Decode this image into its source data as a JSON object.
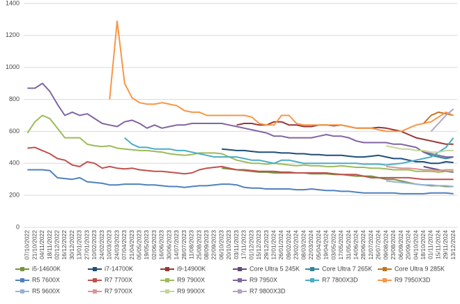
{
  "chart_data": {
    "type": "line",
    "categories": [
      "07/10/2022",
      "21/10/2022",
      "04/11/2022",
      "18/11/2022",
      "02/12/2022",
      "16/12/2022",
      "30/12/2022",
      "13/01/2023",
      "27/01/2023",
      "10/02/2023",
      "24/02/2023",
      "10/03/2023",
      "24/03/2023",
      "07/04/2023",
      "21/04/2023",
      "05/05/2023",
      "19/05/2023",
      "02/06/2023",
      "16/06/2023",
      "30/06/2023",
      "14/07/2023",
      "28/07/2023",
      "11/08/2023",
      "25/08/2023",
      "08/09/2023",
      "22/09/2023",
      "06/10/2023",
      "20/10/2023",
      "03/11/2023",
      "17/11/2023",
      "01/12/2023",
      "15/12/2023",
      "29/12/2023",
      "12/01/2024",
      "26/01/2024",
      "09/02/2024",
      "23/02/2024",
      "08/03/2024",
      "22/03/2024",
      "05/04/2024",
      "19/04/2024",
      "03/05/2024",
      "17/05/2024",
      "31/05/2024",
      "14/06/2024",
      "28/06/2024",
      "12/07/2024",
      "26/07/2024",
      "09/08/2024",
      "23/08/2024",
      "06/09/2024",
      "20/09/2024",
      "04/10/2024",
      "18/10/2024",
      "01/11/2024",
      "15/11/2024",
      "29/11/2024",
      "13/12/2024"
    ],
    "ylim": [
      0,
      1400
    ],
    "yticks": [
      0,
      200,
      400,
      600,
      800,
      1000,
      1200,
      1400
    ],
    "grid": true,
    "series": [
      {
        "name": "i5-14600K",
        "color": "#77933c",
        "values": [
          null,
          null,
          null,
          null,
          null,
          null,
          null,
          null,
          null,
          null,
          null,
          null,
          null,
          null,
          null,
          null,
          null,
          null,
          null,
          null,
          null,
          null,
          null,
          null,
          null,
          null,
          370,
          365,
          360,
          355,
          350,
          345,
          345,
          340,
          340,
          340,
          340,
          340,
          335,
          335,
          335,
          330,
          330,
          325,
          320,
          320,
          320,
          310,
          300,
          300,
          290,
          280,
          270,
          265,
          260,
          260,
          255,
          255
        ]
      },
      {
        "name": "i7-14700K",
        "color": "#1f4e79",
        "values": [
          null,
          null,
          null,
          null,
          null,
          null,
          null,
          null,
          null,
          null,
          null,
          null,
          null,
          null,
          null,
          null,
          null,
          null,
          null,
          null,
          null,
          null,
          null,
          null,
          null,
          null,
          490,
          485,
          480,
          480,
          475,
          470,
          470,
          470,
          465,
          465,
          460,
          460,
          455,
          455,
          450,
          450,
          450,
          445,
          440,
          440,
          445,
          450,
          440,
          430,
          430,
          420,
          410,
          410,
          400,
          400,
          410,
          405
        ]
      },
      {
        "name": "i9-14900K",
        "color": "#953735",
        "values": [
          null,
          null,
          null,
          null,
          null,
          null,
          null,
          null,
          null,
          null,
          null,
          null,
          null,
          null,
          null,
          null,
          null,
          null,
          null,
          null,
          null,
          null,
          null,
          null,
          null,
          null,
          null,
          null,
          640,
          650,
          650,
          640,
          640,
          660,
          660,
          640,
          640,
          630,
          630,
          640,
          640,
          635,
          640,
          630,
          620,
          620,
          620,
          625,
          620,
          610,
          600,
          580,
          560,
          550,
          540,
          530,
          520,
          520
        ]
      },
      {
        "name": "Core Ultra 5 245K",
        "color": "#604a7b",
        "values": [
          null,
          null,
          null,
          null,
          null,
          null,
          null,
          null,
          null,
          null,
          null,
          null,
          null,
          null,
          null,
          null,
          null,
          null,
          null,
          null,
          null,
          null,
          null,
          null,
          null,
          null,
          null,
          null,
          null,
          null,
          null,
          null,
          null,
          null,
          null,
          null,
          null,
          null,
          null,
          null,
          null,
          null,
          null,
          null,
          null,
          null,
          null,
          null,
          null,
          null,
          null,
          null,
          null,
          380,
          370,
          360,
          350,
          345
        ]
      },
      {
        "name": "Core Ultra 7 265K",
        "color": "#31859c",
        "values": [
          null,
          null,
          null,
          null,
          null,
          null,
          null,
          null,
          null,
          null,
          null,
          null,
          null,
          null,
          null,
          null,
          null,
          null,
          null,
          null,
          null,
          null,
          null,
          null,
          null,
          null,
          null,
          null,
          null,
          null,
          null,
          null,
          null,
          null,
          null,
          null,
          null,
          null,
          null,
          null,
          null,
          null,
          null,
          null,
          null,
          null,
          null,
          null,
          null,
          null,
          null,
          null,
          null,
          470,
          450,
          440,
          430,
          440
        ]
      },
      {
        "name": "Core Ultra 9 285K",
        "color": "#c0741f",
        "values": [
          null,
          null,
          null,
          null,
          null,
          null,
          null,
          null,
          null,
          null,
          null,
          null,
          null,
          null,
          null,
          null,
          null,
          null,
          null,
          null,
          null,
          null,
          null,
          null,
          null,
          null,
          null,
          null,
          null,
          null,
          null,
          null,
          null,
          null,
          null,
          null,
          null,
          null,
          null,
          null,
          null,
          null,
          null,
          null,
          null,
          null,
          null,
          null,
          null,
          null,
          null,
          null,
          null,
          650,
          700,
          720,
          710,
          700
        ]
      },
      {
        "name": "R5 7600X",
        "color": "#4f81bd",
        "values": [
          360,
          360,
          360,
          355,
          310,
          305,
          300,
          310,
          285,
          280,
          275,
          265,
          265,
          270,
          270,
          270,
          265,
          265,
          260,
          255,
          255,
          250,
          255,
          260,
          260,
          265,
          270,
          270,
          265,
          250,
          245,
          245,
          240,
          240,
          240,
          240,
          235,
          235,
          240,
          235,
          230,
          230,
          225,
          225,
          220,
          215,
          215,
          215,
          215,
          215,
          210,
          210,
          210,
          210,
          215,
          215,
          215,
          210
        ]
      },
      {
        "name": "R7 7700X",
        "color": "#c0504d",
        "values": [
          495,
          500,
          480,
          460,
          430,
          420,
          390,
          380,
          410,
          400,
          370,
          380,
          370,
          365,
          370,
          360,
          355,
          350,
          350,
          345,
          340,
          335,
          340,
          360,
          370,
          375,
          380,
          370,
          360,
          360,
          355,
          350,
          350,
          350,
          345,
          345,
          340,
          340,
          340,
          340,
          340,
          335,
          330,
          330,
          330,
          320,
          310,
          310,
          310,
          310,
          310,
          310,
          305,
          300,
          300,
          300,
          300,
          300
        ]
      },
      {
        "name": "R9 7900X",
        "color": "#9bbb59",
        "values": [
          590,
          660,
          700,
          680,
          620,
          560,
          560,
          560,
          520,
          510,
          505,
          510,
          495,
          490,
          485,
          480,
          480,
          475,
          470,
          460,
          455,
          450,
          455,
          465,
          465,
          465,
          460,
          440,
          420,
          410,
          400,
          400,
          395,
          400,
          395,
          390,
          385,
          390,
          385,
          385,
          380,
          380,
          385,
          380,
          375,
          375,
          370,
          370,
          365,
          360,
          360,
          360,
          350,
          350,
          350,
          345,
          350,
          350
        ]
      },
      {
        "name": "R9 7950X",
        "color": "#8064a2",
        "values": [
          870,
          870,
          900,
          850,
          770,
          700,
          720,
          700,
          710,
          680,
          650,
          640,
          630,
          660,
          670,
          650,
          620,
          640,
          620,
          630,
          640,
          640,
          650,
          650,
          650,
          650,
          650,
          640,
          630,
          620,
          610,
          600,
          590,
          570,
          570,
          560,
          560,
          560,
          560,
          570,
          580,
          570,
          570,
          560,
          540,
          530,
          530,
          530,
          530,
          520,
          520,
          510,
          500,
          470,
          460,
          450,
          440,
          440
        ]
      },
      {
        "name": "R7 7800X3D",
        "color": "#4bacc6",
        "values": [
          null,
          null,
          null,
          null,
          null,
          null,
          null,
          null,
          null,
          null,
          null,
          null,
          null,
          560,
          520,
          500,
          500,
          490,
          490,
          490,
          480,
          480,
          470,
          460,
          450,
          440,
          440,
          440,
          440,
          430,
          420,
          420,
          410,
          400,
          420,
          420,
          410,
          400,
          400,
          400,
          400,
          400,
          400,
          400,
          400,
          395,
          395,
          395,
          390,
          395,
          400,
          410,
          420,
          430,
          440,
          470,
          500,
          560
        ]
      },
      {
        "name": "R9 7950X3D",
        "color": "#f79646",
        "values": [
          null,
          null,
          null,
          null,
          null,
          null,
          null,
          null,
          null,
          null,
          null,
          800,
          1290,
          900,
          810,
          780,
          770,
          770,
          780,
          770,
          760,
          730,
          720,
          720,
          700,
          700,
          700,
          700,
          700,
          700,
          690,
          650,
          640,
          640,
          700,
          700,
          650,
          640,
          640,
          640,
          640,
          640,
          640,
          630,
          620,
          620,
          620,
          610,
          600,
          600,
          600,
          620,
          640,
          650,
          660,
          690,
          720,
          700
        ]
      },
      {
        "name": "R5 9600X",
        "color": "#95b3d7",
        "values": [
          null,
          null,
          null,
          null,
          null,
          null,
          null,
          null,
          null,
          null,
          null,
          null,
          null,
          null,
          null,
          null,
          null,
          null,
          null,
          null,
          null,
          null,
          null,
          null,
          null,
          null,
          null,
          null,
          null,
          null,
          null,
          null,
          null,
          null,
          null,
          null,
          null,
          null,
          null,
          null,
          null,
          null,
          null,
          null,
          null,
          null,
          null,
          null,
          290,
          285,
          280,
          275,
          270,
          265,
          265,
          260,
          260,
          255
        ]
      },
      {
        "name": "R7 9700X",
        "color": "#d99694",
        "values": [
          null,
          null,
          null,
          null,
          null,
          null,
          null,
          null,
          null,
          null,
          null,
          null,
          null,
          null,
          null,
          null,
          null,
          null,
          null,
          null,
          null,
          null,
          null,
          null,
          null,
          null,
          null,
          null,
          null,
          null,
          null,
          null,
          null,
          null,
          null,
          null,
          null,
          null,
          null,
          null,
          null,
          null,
          null,
          null,
          null,
          null,
          null,
          null,
          380,
          375,
          370,
          370,
          365,
          360,
          360,
          355,
          360,
          360
        ]
      },
      {
        "name": "R9 9900X",
        "color": "#c3d69b",
        "values": [
          null,
          null,
          null,
          null,
          null,
          null,
          null,
          null,
          null,
          null,
          null,
          null,
          null,
          null,
          null,
          null,
          null,
          null,
          null,
          null,
          null,
          null,
          null,
          null,
          null,
          null,
          null,
          null,
          null,
          null,
          null,
          null,
          null,
          null,
          null,
          null,
          null,
          null,
          null,
          null,
          null,
          null,
          null,
          null,
          null,
          null,
          null,
          null,
          510,
          500,
          490,
          490,
          480,
          480,
          470,
          470,
          480,
          480
        ]
      },
      {
        "name": "R7 9800X3D",
        "color": "#b3a2c7",
        "values": [
          null,
          null,
          null,
          null,
          null,
          null,
          null,
          null,
          null,
          null,
          null,
          null,
          null,
          null,
          null,
          null,
          null,
          null,
          null,
          null,
          null,
          null,
          null,
          null,
          null,
          null,
          null,
          null,
          null,
          null,
          null,
          null,
          null,
          null,
          null,
          null,
          null,
          null,
          null,
          null,
          null,
          null,
          null,
          null,
          null,
          null,
          null,
          null,
          null,
          null,
          null,
          null,
          null,
          null,
          600,
          650,
          700,
          740
        ]
      }
    ]
  }
}
